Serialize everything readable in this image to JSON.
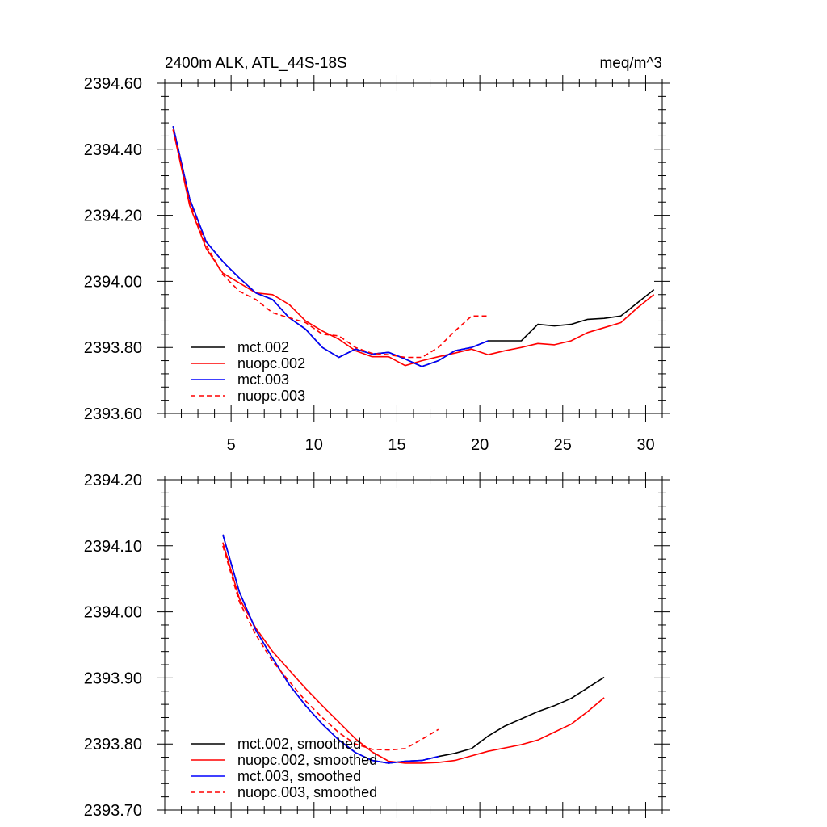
{
  "chart_data": [
    {
      "type": "line",
      "title": "2400m ALK, ATL_44S-18S",
      "units": "meq/m^3",
      "xlim": [
        1,
        31
      ],
      "ylim": [
        2393.6,
        2394.6
      ],
      "xticks": [
        5,
        10,
        15,
        20,
        25,
        30
      ],
      "xtick_labels": [
        "5",
        "10",
        "15",
        "20",
        "25",
        "30"
      ],
      "yticks": [
        2393.6,
        2393.8,
        2394.0,
        2394.2,
        2394.4,
        2394.6
      ],
      "ytick_labels": [
        "2393.60",
        "2393.80",
        "2394.00",
        "2394.20",
        "2394.40",
        "2394.60"
      ],
      "legend_position": "bottom-left",
      "series": [
        {
          "name": "mct.002",
          "color": "#000000",
          "dash": "solid",
          "x": [
            1.5,
            2.5,
            3.5,
            4.5,
            5.5,
            6.5,
            7.5,
            8.5,
            9.5,
            10.5,
            11.5,
            12.5,
            13.5,
            14.5,
            15.5,
            16.5,
            17.5,
            18.5,
            19.5,
            20.5,
            21.5,
            22.5,
            23.5,
            24.5,
            25.5,
            26.5,
            27.5,
            28.5,
            29.5,
            30.5
          ],
          "y": [
            2394.47,
            2394.25,
            2394.12,
            2394.06,
            2394.01,
            2393.965,
            2393.945,
            2393.89,
            2393.855,
            2393.8,
            2393.77,
            2393.795,
            2393.78,
            2393.785,
            2393.765,
            2393.742,
            2393.76,
            2393.79,
            2393.8,
            2393.82,
            2393.82,
            2393.82,
            2393.87,
            2393.865,
            2393.87,
            2393.885,
            2393.888,
            2393.895,
            2393.935,
            2393.975
          ]
        },
        {
          "name": "nuopc.002",
          "color": "#ff0000",
          "dash": "solid",
          "x": [
            1.5,
            2.5,
            3.5,
            4.5,
            5.5,
            6.5,
            7.5,
            8.5,
            9.5,
            10.5,
            11.5,
            12.5,
            13.5,
            14.5,
            15.5,
            16.5,
            17.5,
            18.5,
            19.5,
            20.5,
            21.5,
            22.5,
            23.5,
            24.5,
            25.5,
            26.5,
            27.5,
            28.5,
            29.5,
            30.5
          ],
          "y": [
            2394.46,
            2394.23,
            2394.1,
            2394.025,
            2393.995,
            2393.965,
            2393.96,
            2393.93,
            2393.88,
            2393.85,
            2393.825,
            2393.79,
            2393.772,
            2393.772,
            2393.745,
            2393.76,
            2393.772,
            2393.783,
            2393.795,
            2393.778,
            2393.79,
            2393.8,
            2393.812,
            2393.808,
            2393.82,
            2393.845,
            2393.86,
            2393.875,
            2393.92,
            2393.96
          ]
        },
        {
          "name": "mct.003",
          "color": "#0000ff",
          "dash": "solid",
          "x": [
            1.5,
            2.5,
            3.5,
            4.5,
            5.5,
            6.5,
            7.5,
            8.5,
            9.5,
            10.5,
            11.5,
            12.5,
            13.5,
            14.5,
            15.5,
            16.5,
            17.5,
            18.5,
            19.5,
            20.5
          ],
          "y": [
            2394.47,
            2394.25,
            2394.12,
            2394.06,
            2394.01,
            2393.965,
            2393.945,
            2393.89,
            2393.855,
            2393.8,
            2393.77,
            2393.795,
            2393.78,
            2393.785,
            2393.765,
            2393.742,
            2393.76,
            2393.79,
            2393.8,
            2393.82
          ]
        },
        {
          "name": "nuopc.003",
          "color": "#ff0000",
          "dash": "dashed",
          "x": [
            1.5,
            2.5,
            3.5,
            4.5,
            5.5,
            6.5,
            7.5,
            8.5,
            9.5,
            10.5,
            11.5,
            12.5,
            13.5,
            14.5,
            15.5,
            16.5,
            17.5,
            18.5,
            19.5,
            20.5
          ],
          "y": [
            2394.46,
            2394.24,
            2394.11,
            2394.02,
            2393.97,
            2393.945,
            2393.905,
            2393.89,
            2393.875,
            2393.84,
            2393.835,
            2393.8,
            2393.782,
            2393.778,
            2393.77,
            2393.77,
            2393.8,
            2393.85,
            2393.895,
            2393.895
          ]
        }
      ]
    },
    {
      "type": "line",
      "xlim": [
        1,
        31
      ],
      "ylim": [
        2393.7,
        2394.2
      ],
      "xticks": [
        5,
        10,
        15,
        20,
        25,
        30
      ],
      "yticks": [
        2393.7,
        2393.8,
        2393.9,
        2394.0,
        2394.1,
        2394.2
      ],
      "ytick_labels": [
        "2393.70",
        "2393.80",
        "2393.90",
        "2394.00",
        "2394.10",
        "2394.20"
      ],
      "legend_position": "bottom-left",
      "series": [
        {
          "name": "mct.002, smoothed",
          "color": "#000000",
          "dash": "solid",
          "x": [
            4.5,
            5.5,
            6.5,
            7.5,
            8.5,
            9.5,
            10.5,
            11.5,
            12.5,
            13.5,
            14.5,
            15.5,
            16.5,
            17.5,
            18.5,
            19.5,
            20.5,
            21.5,
            22.5,
            23.5,
            24.5,
            25.5,
            26.5,
            27.5
          ],
          "y": [
            2394.117,
            2394.03,
            2393.972,
            2393.93,
            2393.89,
            2393.858,
            2393.83,
            2393.806,
            2393.787,
            2393.775,
            2393.771,
            2393.774,
            2393.775,
            2393.781,
            2393.786,
            2393.793,
            2393.812,
            2393.827,
            2393.838,
            2393.849,
            2393.858,
            2393.869,
            2393.885,
            2393.901
          ]
        },
        {
          "name": "nuopc.002, smoothed",
          "color": "#ff0000",
          "dash": "solid",
          "x": [
            4.5,
            5.5,
            6.5,
            7.5,
            8.5,
            9.5,
            10.5,
            11.5,
            12.5,
            13.5,
            14.5,
            15.5,
            16.5,
            17.5,
            18.5,
            19.5,
            20.5,
            21.5,
            22.5,
            23.5,
            24.5,
            25.5,
            26.5,
            27.5
          ],
          "y": [
            2394.105,
            2394.02,
            2393.975,
            2393.94,
            2393.912,
            2393.884,
            2393.858,
            2393.833,
            2393.808,
            2393.788,
            2393.774,
            2393.771,
            2393.771,
            2393.772,
            2393.775,
            2393.782,
            2393.789,
            2393.794,
            2393.799,
            2393.806,
            2393.818,
            2393.83,
            2393.849,
            2393.87
          ]
        },
        {
          "name": "mct.003, smoothed",
          "color": "#0000ff",
          "dash": "solid",
          "x": [
            4.5,
            5.5,
            6.5,
            7.5,
            8.5,
            9.5,
            10.5,
            11.5,
            12.5,
            13.5,
            14.5,
            15.5,
            16.5,
            17.5
          ],
          "y": [
            2394.117,
            2394.03,
            2393.972,
            2393.93,
            2393.89,
            2393.858,
            2393.83,
            2393.806,
            2393.787,
            2393.775,
            2393.771,
            2393.774,
            2393.775,
            2393.781
          ]
        },
        {
          "name": "nuopc.003, smoothed",
          "color": "#ff0000",
          "dash": "dashed",
          "x": [
            4.5,
            5.5,
            6.5,
            7.5,
            8.5,
            9.5,
            10.5,
            11.5,
            12.5,
            13.5,
            14.5,
            15.5,
            16.5,
            17.5
          ],
          "y": [
            2394.1,
            2394.015,
            2393.965,
            2393.925,
            2393.895,
            2393.865,
            2393.84,
            2393.817,
            2393.8,
            2393.792,
            2393.791,
            2393.793,
            2393.807,
            2393.822
          ]
        }
      ]
    }
  ]
}
